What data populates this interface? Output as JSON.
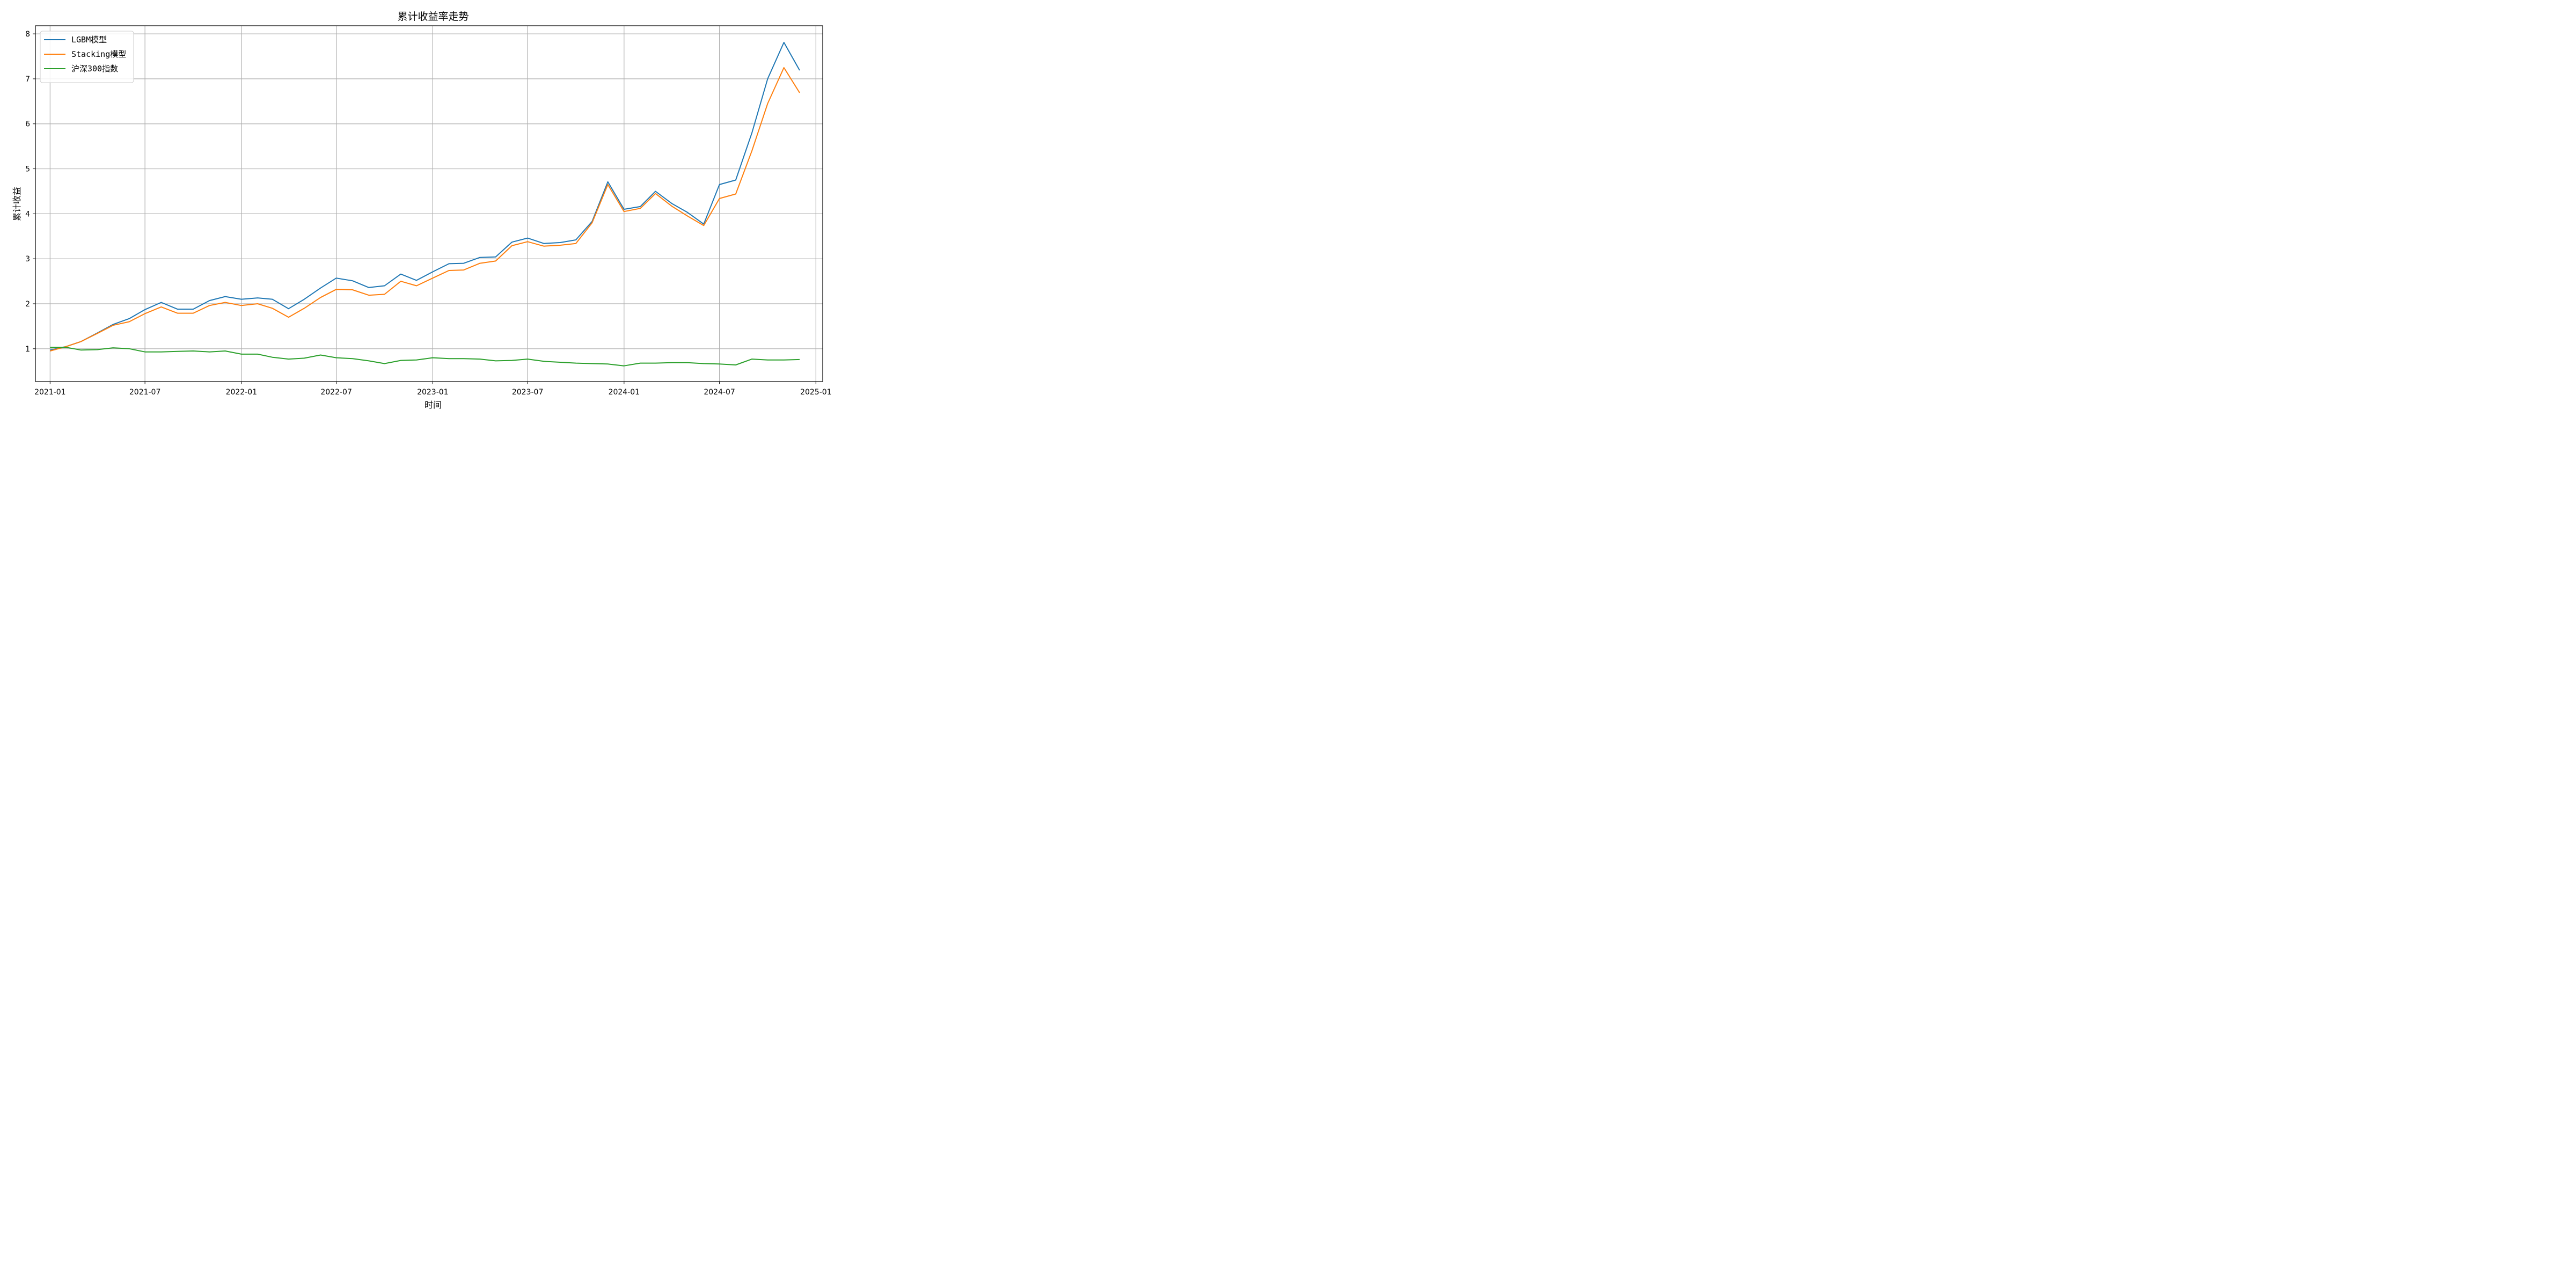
{
  "chart_data": {
    "type": "line",
    "title": "累计收益率走势",
    "xlabel": "时间",
    "ylabel": "累计收益",
    "xlim": [
      "2020-12-04",
      "2025-01-14"
    ],
    "ylim": [
      0.27,
      8.18
    ],
    "x_ticks": [
      "2021-01",
      "2021-07",
      "2022-01",
      "2022-07",
      "2023-01",
      "2023-07",
      "2024-01",
      "2024-07",
      "2025-01"
    ],
    "y_ticks": [
      "1",
      "2",
      "3",
      "4",
      "5",
      "6",
      "7",
      "8"
    ],
    "grid": true,
    "legend_position": "top-left",
    "x": [
      "2021-01",
      "2021-02",
      "2021-03",
      "2021-04",
      "2021-05",
      "2021-06",
      "2021-07",
      "2021-08",
      "2021-09",
      "2021-10",
      "2021-11",
      "2021-12",
      "2022-01",
      "2022-02",
      "2022-03",
      "2022-04",
      "2022-05",
      "2022-06",
      "2022-07",
      "2022-08",
      "2022-09",
      "2022-10",
      "2022-11",
      "2022-12",
      "2023-01",
      "2023-02",
      "2023-03",
      "2023-04",
      "2023-05",
      "2023-06",
      "2023-07",
      "2023-08",
      "2023-09",
      "2023-10",
      "2023-11",
      "2023-12",
      "2024-01",
      "2024-02",
      "2024-03",
      "2024-04",
      "2024-05",
      "2024-06",
      "2024-07",
      "2024-08",
      "2024-09",
      "2024-10",
      "2024-11",
      "2024-12"
    ],
    "series": [
      {
        "name": "LGBM模型",
        "color": "#1f77b4",
        "values": [
          0.97,
          1.05,
          1.16,
          1.35,
          1.54,
          1.67,
          1.87,
          2.03,
          1.88,
          1.88,
          2.07,
          2.16,
          2.1,
          2.13,
          2.1,
          1.89,
          2.1,
          2.35,
          2.57,
          2.51,
          2.36,
          2.4,
          2.66,
          2.52,
          2.71,
          2.89,
          2.9,
          3.03,
          3.04,
          3.37,
          3.46,
          3.34,
          3.36,
          3.42,
          3.83,
          4.71,
          4.1,
          4.16,
          4.5,
          4.23,
          4.03,
          3.77,
          4.65,
          4.75,
          5.8,
          7.0,
          7.81,
          7.19
        ]
      },
      {
        "name": "Stacking模型",
        "color": "#ff7f0e",
        "values": [
          0.95,
          1.05,
          1.16,
          1.34,
          1.52,
          1.6,
          1.78,
          1.93,
          1.79,
          1.79,
          1.96,
          2.03,
          1.96,
          2.0,
          1.9,
          1.7,
          1.9,
          2.14,
          2.32,
          2.31,
          2.19,
          2.21,
          2.5,
          2.4,
          2.57,
          2.74,
          2.75,
          2.9,
          2.95,
          3.29,
          3.38,
          3.28,
          3.3,
          3.34,
          3.8,
          4.65,
          4.05,
          4.12,
          4.45,
          4.17,
          3.95,
          3.74,
          4.34,
          4.44,
          5.4,
          6.45,
          7.25,
          6.69
        ]
      },
      {
        "name": "沪深300指数",
        "color": "#2ca02c",
        "values": [
          1.03,
          1.03,
          0.97,
          0.98,
          1.02,
          1.0,
          0.93,
          0.93,
          0.94,
          0.95,
          0.93,
          0.95,
          0.88,
          0.88,
          0.81,
          0.77,
          0.79,
          0.86,
          0.8,
          0.78,
          0.73,
          0.67,
          0.74,
          0.75,
          0.8,
          0.78,
          0.78,
          0.77,
          0.73,
          0.74,
          0.77,
          0.72,
          0.7,
          0.68,
          0.67,
          0.66,
          0.62,
          0.68,
          0.68,
          0.69,
          0.69,
          0.67,
          0.66,
          0.64,
          0.77,
          0.75,
          0.75,
          0.76
        ]
      }
    ]
  }
}
